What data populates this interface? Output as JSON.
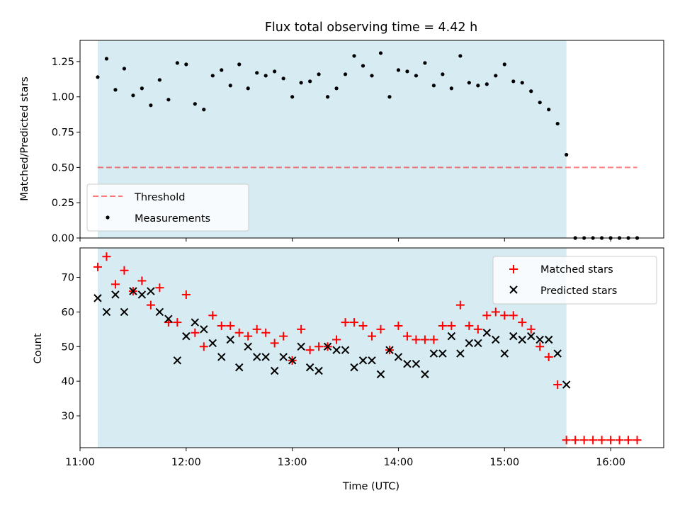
{
  "colors": {
    "observing_span": "#add8e6",
    "threshold": "#ff0000",
    "measurements": "#000000",
    "matched": "#ff0000",
    "predicted": "#000000"
  },
  "chart_data": [
    {
      "type": "scatter",
      "title": "Flux total observing time = 4.42 h",
      "xlabel": "",
      "ylabel": "Matched/Predicted stars",
      "xlim": [
        "11:00",
        "16:30"
      ],
      "ylim": [
        0,
        1.4
      ],
      "yticks": [
        "0.00",
        "0.25",
        "0.50",
        "0.75",
        "1.00",
        "1.25"
      ],
      "observing_span": [
        "11:10",
        "15:35"
      ],
      "legend": {
        "position": "lower-left",
        "entries": [
          "Threshold",
          "Measurements"
        ]
      },
      "threshold": {
        "name": "Threshold",
        "value": 0.5,
        "x": [
          "11:10",
          "16:15"
        ]
      },
      "series": [
        {
          "name": "Measurements",
          "x": [
            "11:10",
            "11:15",
            "11:20",
            "11:25",
            "11:30",
            "11:35",
            "11:40",
            "11:45",
            "11:50",
            "11:55",
            "12:00",
            "12:05",
            "12:10",
            "12:15",
            "12:20",
            "12:25",
            "12:30",
            "12:35",
            "12:40",
            "12:45",
            "12:50",
            "12:55",
            "13:00",
            "13:05",
            "13:10",
            "13:15",
            "13:20",
            "13:25",
            "13:30",
            "13:35",
            "13:40",
            "13:45",
            "13:50",
            "13:55",
            "14:00",
            "14:05",
            "14:10",
            "14:15",
            "14:20",
            "14:25",
            "14:30",
            "14:35",
            "14:40",
            "14:45",
            "14:50",
            "14:55",
            "15:00",
            "15:05",
            "15:10",
            "15:15",
            "15:20",
            "15:25",
            "15:30",
            "15:35",
            "15:40",
            "15:45",
            "15:50",
            "15:55",
            "16:00",
            "16:05",
            "16:10",
            "16:15"
          ],
          "y": [
            1.14,
            1.27,
            1.05,
            1.2,
            1.01,
            1.06,
            0.94,
            1.12,
            0.98,
            1.24,
            1.23,
            0.95,
            0.91,
            1.15,
            1.19,
            1.08,
            1.23,
            1.06,
            1.17,
            1.15,
            1.18,
            1.13,
            1.0,
            1.1,
            1.11,
            1.16,
            1.0,
            1.06,
            1.16,
            1.29,
            1.22,
            1.15,
            1.31,
            1.0,
            1.19,
            1.18,
            1.15,
            1.24,
            1.08,
            1.16,
            1.06,
            1.29,
            1.1,
            1.08,
            1.09,
            1.15,
            1.23,
            1.11,
            1.1,
            1.04,
            0.96,
            0.91,
            0.81,
            0.59,
            0.0,
            0.0,
            0.0,
            0.0,
            0.0,
            0.0,
            0.0,
            0.0
          ]
        }
      ]
    },
    {
      "type": "scatter",
      "title": "",
      "xlabel": "Time (UTC)",
      "ylabel": "Count",
      "xlim": [
        "11:00",
        "16:30"
      ],
      "ylim": [
        20.8,
        78.5
      ],
      "yticks": [
        "30",
        "40",
        "50",
        "60",
        "70"
      ],
      "xticks": [
        "11:00",
        "12:00",
        "13:00",
        "14:00",
        "15:00",
        "16:00"
      ],
      "observing_span": [
        "11:10",
        "15:35"
      ],
      "legend": {
        "position": "top-right",
        "entries": [
          "Matched stars",
          "Predicted stars"
        ]
      },
      "series": [
        {
          "name": "Matched stars",
          "marker": "plus",
          "x": [
            "11:10",
            "11:15",
            "11:20",
            "11:25",
            "11:30",
            "11:35",
            "11:40",
            "11:45",
            "11:50",
            "11:55",
            "12:00",
            "12:05",
            "12:10",
            "12:15",
            "12:20",
            "12:25",
            "12:30",
            "12:35",
            "12:40",
            "12:45",
            "12:50",
            "12:55",
            "13:00",
            "13:05",
            "13:10",
            "13:15",
            "13:20",
            "13:25",
            "13:30",
            "13:35",
            "13:40",
            "13:45",
            "13:50",
            "13:55",
            "14:00",
            "14:05",
            "14:10",
            "14:15",
            "14:20",
            "14:25",
            "14:30",
            "14:35",
            "14:40",
            "14:45",
            "14:50",
            "14:55",
            "15:00",
            "15:05",
            "15:10",
            "15:15",
            "15:20",
            "15:25",
            "15:30",
            "15:35",
            "15:40",
            "15:45",
            "15:50",
            "15:55",
            "16:00",
            "16:05",
            "16:10",
            "16:15"
          ],
          "y": [
            73,
            76,
            68,
            72,
            66,
            69,
            62,
            67,
            57,
            57,
            65,
            54,
            50,
            59,
            56,
            56,
            54,
            53,
            55,
            54,
            51,
            53,
            46,
            55,
            49,
            50,
            50,
            52,
            57,
            57,
            56,
            53,
            55,
            49,
            56,
            53,
            52,
            52,
            52,
            56,
            56,
            62,
            56,
            55,
            59,
            60,
            59,
            59,
            57,
            55,
            50,
            47,
            39,
            23,
            23,
            23,
            23,
            23,
            23,
            23,
            23,
            23
          ]
        },
        {
          "name": "Predicted stars",
          "marker": "x",
          "x": [
            "11:10",
            "11:15",
            "11:20",
            "11:25",
            "11:30",
            "11:35",
            "11:40",
            "11:45",
            "11:50",
            "11:55",
            "12:00",
            "12:05",
            "12:10",
            "12:15",
            "12:20",
            "12:25",
            "12:30",
            "12:35",
            "12:40",
            "12:45",
            "12:50",
            "12:55",
            "13:00",
            "13:05",
            "13:10",
            "13:15",
            "13:20",
            "13:25",
            "13:30",
            "13:35",
            "13:40",
            "13:45",
            "13:50",
            "13:55",
            "14:00",
            "14:05",
            "14:10",
            "14:15",
            "14:20",
            "14:25",
            "14:30",
            "14:35",
            "14:40",
            "14:45",
            "14:50",
            "14:55",
            "15:00",
            "15:05",
            "15:10",
            "15:15",
            "15:20",
            "15:25",
            "15:30",
            "15:35"
          ],
          "y": [
            64,
            60,
            65,
            60,
            66,
            65,
            66,
            60,
            58,
            46,
            53,
            57,
            55,
            51,
            47,
            52,
            44,
            50,
            47,
            47,
            43,
            47,
            46,
            50,
            44,
            43,
            50,
            49,
            49,
            44,
            46,
            46,
            42,
            49,
            47,
            45,
            45,
            42,
            48,
            48,
            53,
            48,
            51,
            51,
            54,
            52,
            48,
            53,
            52,
            53,
            52,
            52,
            48,
            39
          ]
        }
      ]
    }
  ]
}
